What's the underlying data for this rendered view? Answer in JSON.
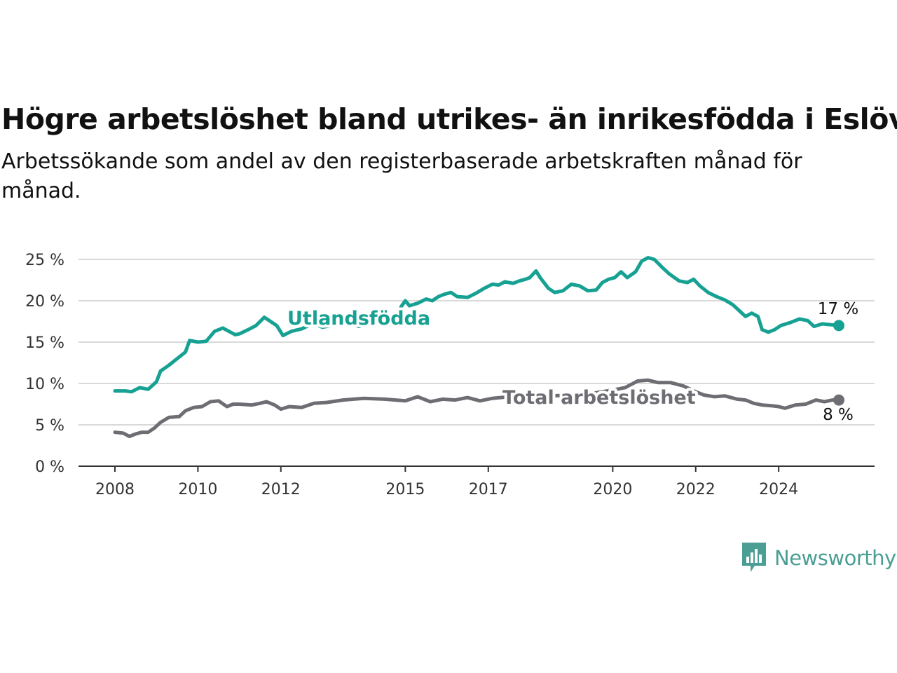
{
  "title": "Högre arbetslöshet bland utrikes- än inrikesfödda i Eslöv",
  "subtitle": "Arbetssökande som andel av den registerbaserade arbetskraften månad för månad.",
  "brand": {
    "name": "Newsworthy",
    "color": "#4a9e94",
    "icon": "newsworthy-logo-icon"
  },
  "colors": {
    "foreign": "#16a193",
    "total": "#6e6d73",
    "grid": "#d9d9d9",
    "axis": "#333333"
  },
  "chart_data": {
    "type": "line",
    "ylim": [
      0,
      25
    ],
    "y_ticks": [
      0,
      5,
      10,
      15,
      20,
      25
    ],
    "y_tick_labels": [
      "0 %",
      "5 %",
      "10 %",
      "15 %",
      "20 %",
      "25 %"
    ],
    "x_ticks": [
      2008,
      2010,
      2012,
      2015,
      2017,
      2020,
      2022,
      2024
    ],
    "x_tick_labels": [
      "2008",
      "2010",
      "2012",
      "2015",
      "2017",
      "2020",
      "2022",
      "2024"
    ],
    "grid": true,
    "series": [
      {
        "name": "Utlandsfödda",
        "end_label": "17 %",
        "points": [
          [
            2008.0,
            9.1
          ],
          [
            2008.25,
            9.1
          ],
          [
            2008.4,
            9.0
          ],
          [
            2008.6,
            9.5
          ],
          [
            2008.8,
            9.3
          ],
          [
            2009.0,
            10.2
          ],
          [
            2009.1,
            11.5
          ],
          [
            2009.3,
            12.2
          ],
          [
            2009.5,
            13.0
          ],
          [
            2009.7,
            13.8
          ],
          [
            2009.8,
            15.2
          ],
          [
            2010.0,
            15.0
          ],
          [
            2010.2,
            15.1
          ],
          [
            2010.4,
            16.3
          ],
          [
            2010.5,
            16.5
          ],
          [
            2010.6,
            16.7
          ],
          [
            2010.75,
            16.3
          ],
          [
            2010.9,
            15.9
          ],
          [
            2011.0,
            16.0
          ],
          [
            2011.25,
            16.6
          ],
          [
            2011.4,
            17.0
          ],
          [
            2011.6,
            18.0
          ],
          [
            2011.75,
            17.5
          ],
          [
            2011.9,
            17.0
          ],
          [
            2012.05,
            15.8
          ],
          [
            2012.25,
            16.3
          ],
          [
            2012.5,
            16.6
          ],
          [
            2012.8,
            17.3
          ],
          [
            2013.0,
            16.8
          ],
          [
            2013.5,
            17.3
          ],
          [
            2013.9,
            16.9
          ],
          [
            2014.2,
            17.5
          ],
          [
            2014.5,
            17.2
          ],
          [
            2014.8,
            18.0
          ],
          [
            2014.9,
            19.3
          ],
          [
            2015.0,
            20.0
          ],
          [
            2015.1,
            19.4
          ],
          [
            2015.3,
            19.7
          ],
          [
            2015.5,
            20.2
          ],
          [
            2015.65,
            20.0
          ],
          [
            2015.8,
            20.5
          ],
          [
            2015.95,
            20.8
          ],
          [
            2016.1,
            21.0
          ],
          [
            2016.25,
            20.5
          ],
          [
            2016.5,
            20.4
          ],
          [
            2016.7,
            20.9
          ],
          [
            2016.9,
            21.5
          ],
          [
            2017.1,
            22.0
          ],
          [
            2017.25,
            21.9
          ],
          [
            2017.4,
            22.3
          ],
          [
            2017.6,
            22.1
          ],
          [
            2017.75,
            22.4
          ],
          [
            2017.9,
            22.6
          ],
          [
            2018.0,
            22.8
          ],
          [
            2018.15,
            23.6
          ],
          [
            2018.25,
            22.8
          ],
          [
            2018.45,
            21.5
          ],
          [
            2018.6,
            21.0
          ],
          [
            2018.8,
            21.2
          ],
          [
            2019.0,
            22.0
          ],
          [
            2019.2,
            21.8
          ],
          [
            2019.4,
            21.2
          ],
          [
            2019.6,
            21.3
          ],
          [
            2019.75,
            22.2
          ],
          [
            2019.9,
            22.6
          ],
          [
            2020.05,
            22.8
          ],
          [
            2020.2,
            23.5
          ],
          [
            2020.35,
            22.8
          ],
          [
            2020.55,
            23.5
          ],
          [
            2020.7,
            24.8
          ],
          [
            2020.85,
            25.2
          ],
          [
            2021.0,
            25.0
          ],
          [
            2021.2,
            24.0
          ],
          [
            2021.35,
            23.3
          ],
          [
            2021.6,
            22.4
          ],
          [
            2021.8,
            22.2
          ],
          [
            2021.95,
            22.6
          ],
          [
            2022.1,
            21.8
          ],
          [
            2022.3,
            21.0
          ],
          [
            2022.5,
            20.5
          ],
          [
            2022.7,
            20.1
          ],
          [
            2022.9,
            19.5
          ],
          [
            2023.05,
            18.8
          ],
          [
            2023.2,
            18.1
          ],
          [
            2023.35,
            18.5
          ],
          [
            2023.5,
            18.1
          ],
          [
            2023.6,
            16.5
          ],
          [
            2023.75,
            16.2
          ],
          [
            2023.9,
            16.5
          ],
          [
            2024.05,
            17.0
          ],
          [
            2024.3,
            17.4
          ],
          [
            2024.5,
            17.8
          ],
          [
            2024.7,
            17.6
          ],
          [
            2024.85,
            16.9
          ],
          [
            2025.05,
            17.2
          ],
          [
            2025.25,
            17.1
          ],
          [
            2025.45,
            17.0
          ]
        ]
      },
      {
        "name": "Total arbetslöshet",
        "end_label": "8 %",
        "points": [
          [
            2008.0,
            4.1
          ],
          [
            2008.2,
            4.0
          ],
          [
            2008.35,
            3.6
          ],
          [
            2008.5,
            3.9
          ],
          [
            2008.65,
            4.1
          ],
          [
            2008.8,
            4.1
          ],
          [
            2008.95,
            4.6
          ],
          [
            2009.1,
            5.3
          ],
          [
            2009.3,
            5.9
          ],
          [
            2009.55,
            6.0
          ],
          [
            2009.7,
            6.7
          ],
          [
            2009.9,
            7.1
          ],
          [
            2010.1,
            7.2
          ],
          [
            2010.3,
            7.8
          ],
          [
            2010.5,
            7.9
          ],
          [
            2010.7,
            7.2
          ],
          [
            2010.85,
            7.5
          ],
          [
            2011.0,
            7.5
          ],
          [
            2011.3,
            7.4
          ],
          [
            2011.5,
            7.6
          ],
          [
            2011.65,
            7.8
          ],
          [
            2011.85,
            7.4
          ],
          [
            2012.0,
            6.9
          ],
          [
            2012.2,
            7.2
          ],
          [
            2012.5,
            7.1
          ],
          [
            2012.8,
            7.6
          ],
          [
            2013.1,
            7.7
          ],
          [
            2013.5,
            8.0
          ],
          [
            2014.0,
            8.2
          ],
          [
            2014.5,
            8.1
          ],
          [
            2015.0,
            7.9
          ],
          [
            2015.3,
            8.4
          ],
          [
            2015.6,
            7.8
          ],
          [
            2015.9,
            8.1
          ],
          [
            2016.2,
            8.0
          ],
          [
            2016.5,
            8.3
          ],
          [
            2016.8,
            7.9
          ],
          [
            2017.1,
            8.2
          ],
          [
            2017.5,
            8.4
          ],
          [
            2018.0,
            8.6
          ],
          [
            2018.5,
            8.5
          ],
          [
            2019.0,
            8.6
          ],
          [
            2019.5,
            8.8
          ],
          [
            2020.0,
            9.2
          ],
          [
            2020.3,
            9.5
          ],
          [
            2020.6,
            10.3
          ],
          [
            2020.85,
            10.4
          ],
          [
            2021.1,
            10.1
          ],
          [
            2021.4,
            10.1
          ],
          [
            2021.7,
            9.7
          ],
          [
            2022.0,
            9.0
          ],
          [
            2022.2,
            8.6
          ],
          [
            2022.45,
            8.4
          ],
          [
            2022.7,
            8.5
          ],
          [
            2023.0,
            8.1
          ],
          [
            2023.2,
            8.0
          ],
          [
            2023.4,
            7.6
          ],
          [
            2023.6,
            7.4
          ],
          [
            2023.85,
            7.3
          ],
          [
            2024.0,
            7.2
          ],
          [
            2024.15,
            7.0
          ],
          [
            2024.4,
            7.4
          ],
          [
            2024.65,
            7.5
          ],
          [
            2024.9,
            8.0
          ],
          [
            2025.1,
            7.8
          ],
          [
            2025.3,
            8.0
          ],
          [
            2025.45,
            8.0
          ]
        ]
      }
    ]
  }
}
